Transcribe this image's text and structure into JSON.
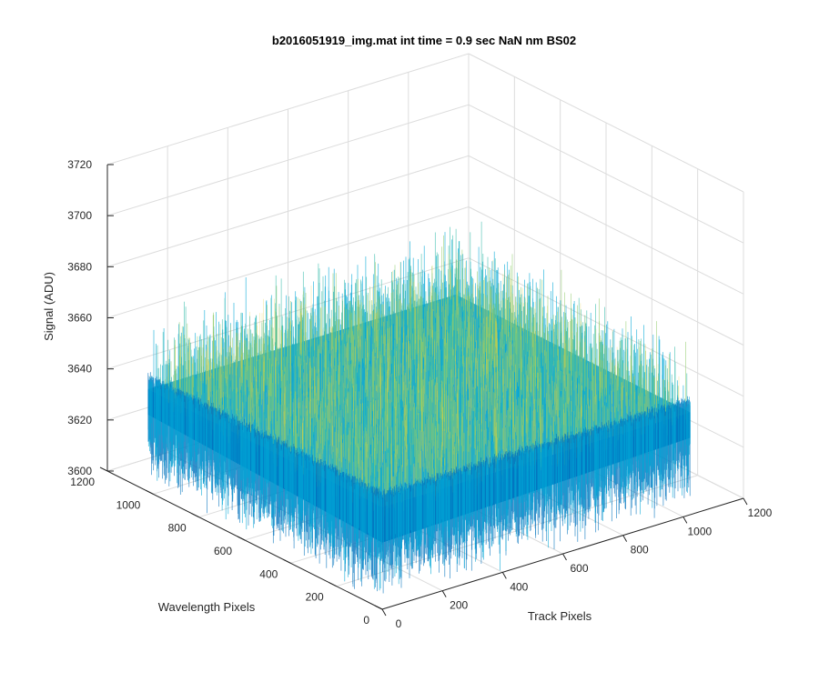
{
  "chart_data": {
    "type": "surface3d",
    "title": "b2016051919_img.mat int time = 0.9 sec  NaN nm BS02",
    "xlabel": "Track Pixels",
    "ylabel": "Wavelength Pixels",
    "zlabel": "Signal (ADU)",
    "xlim": [
      0,
      1200
    ],
    "ylim": [
      0,
      1200
    ],
    "zlim": [
      3600,
      3720
    ],
    "xticks": [
      "0",
      "200",
      "400",
      "600",
      "800",
      "1000",
      "1200"
    ],
    "yticks": [
      "0",
      "200",
      "400",
      "600",
      "800",
      "1000",
      "1200"
    ],
    "zticks": [
      "3600",
      "3620",
      "3640",
      "3660",
      "3680",
      "3700",
      "3720"
    ],
    "data_extent": {
      "x": [
        1,
        1024
      ],
      "y": [
        1,
        1024
      ]
    },
    "signal": {
      "mean": 3640,
      "min": 3605,
      "max": 3710
    },
    "grid": true,
    "colormap": [
      "#0072bd",
      "#00a6d6",
      "#39bdad",
      "#8fcb6a",
      "#e6d23c"
    ]
  }
}
